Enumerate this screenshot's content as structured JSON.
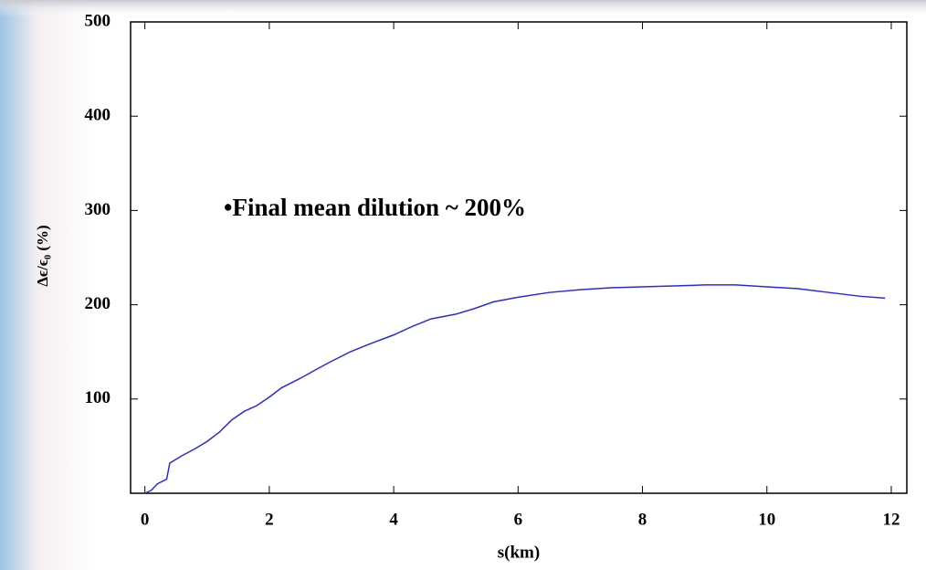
{
  "chart_data": {
    "type": "line",
    "annotation": "•Final mean dilution ~ 200%",
    "xlabel": "s(km)",
    "ylabel": "Δϵ/ϵ₀ (%)",
    "x": [
      0,
      0.1,
      0.2,
      0.35,
      0.4,
      0.6,
      0.8,
      1.0,
      1.2,
      1.4,
      1.6,
      1.8,
      2.0,
      2.2,
      2.5,
      2.8,
      3.0,
      3.3,
      3.6,
      4.0,
      4.3,
      4.6,
      5.0,
      5.3,
      5.6,
      6.0,
      6.5,
      7.0,
      7.5,
      8.0,
      8.5,
      9.0,
      9.5,
      10.0,
      10.5,
      11.0,
      11.5,
      11.9
    ],
    "series": [
      {
        "color": "#2b2bd6",
        "values": [
          0,
          3,
          10,
          15,
          32,
          40,
          47,
          55,
          65,
          78,
          87,
          93,
          102,
          112,
          122,
          133,
          140,
          150,
          158,
          168,
          177,
          185,
          190,
          196,
          203,
          208,
          213,
          216,
          218,
          219,
          220,
          221,
          221,
          219,
          217,
          213,
          209,
          207
        ]
      }
    ],
    "xlim": [
      -0.23,
      12.25
    ],
    "ylim": [
      0,
      500
    ],
    "xticks": [
      0,
      2,
      4,
      6,
      8,
      10,
      12
    ],
    "yticks": [
      100,
      200,
      300,
      400,
      500
    ],
    "annotation_color": "#1c1ce0"
  }
}
